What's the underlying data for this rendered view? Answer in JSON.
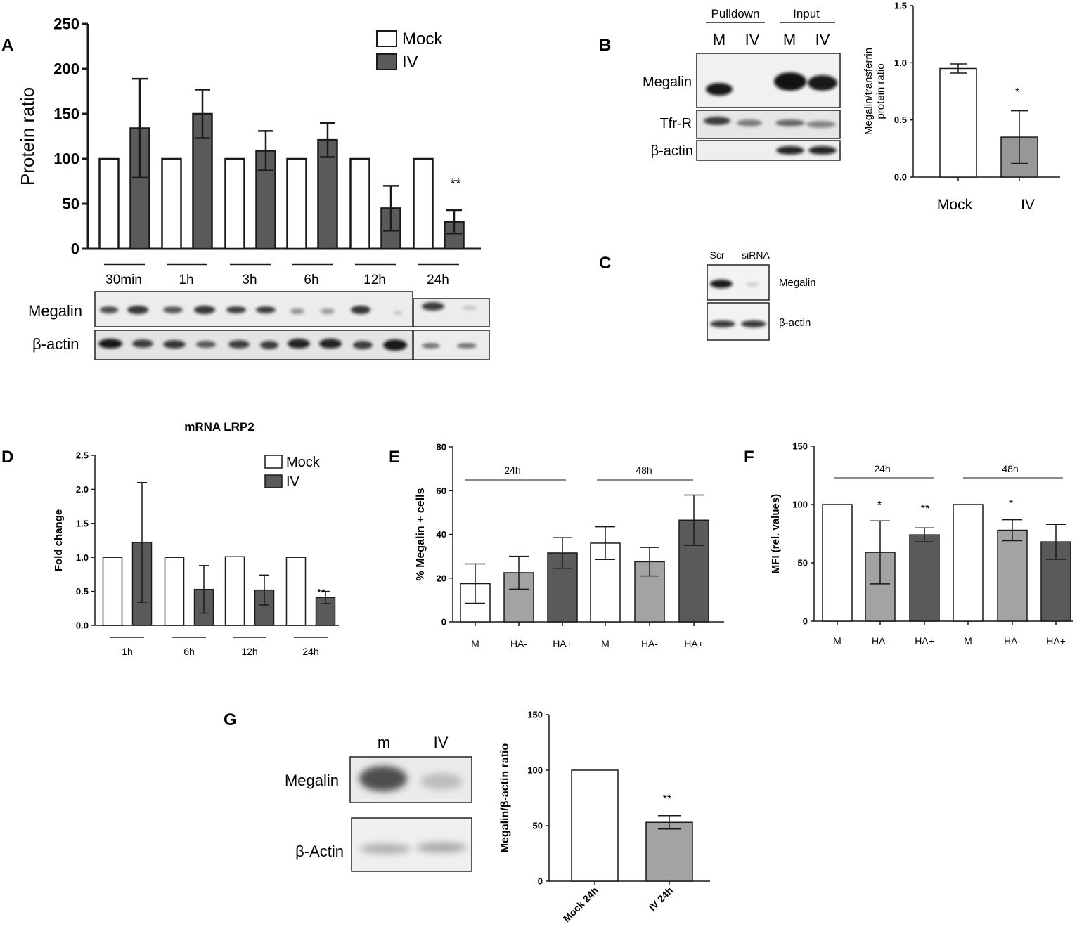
{
  "panels": {
    "A": {
      "letter": "A",
      "legend": {
        "mock": "Mock",
        "iv": "IV"
      },
      "blot_rows": [
        "Megalin",
        "β-actin"
      ],
      "significance": "**"
    },
    "B": {
      "letter": "B",
      "group_labels": [
        "Pulldown",
        "Input"
      ],
      "lane_labels": [
        "M",
        "IV",
        "M",
        "IV"
      ],
      "blot_rows": [
        "Megalin",
        "Tfr-R",
        "β-actin"
      ],
      "significance": "*"
    },
    "C": {
      "letter": "C",
      "lane_labels": [
        "Scr",
        "siRNA"
      ],
      "blot_rows": [
        "Megalin",
        "β-actin"
      ]
    },
    "D": {
      "letter": "D",
      "legend": {
        "mock": "Mock",
        "iv": "IV"
      },
      "significance": "**"
    },
    "E": {
      "letter": "E",
      "group_labels": [
        "24h",
        "48h"
      ]
    },
    "F": {
      "letter": "F",
      "group_labels": [
        "24h",
        "48h"
      ],
      "significance": [
        "*",
        "**",
        "*"
      ]
    },
    "G": {
      "letter": "G",
      "lane_labels": [
        "m",
        "IV"
      ],
      "blot_rows": [
        "Megalin",
        "β-Actin"
      ],
      "significance": "**"
    }
  },
  "colors": {
    "mock": "#ffffff",
    "iv_dark": "#5a5a5a",
    "ha_minus": "#a3a3a3",
    "ha_plus": "#5a5a5a",
    "axis": "#1a1a1a"
  },
  "chart_data": [
    {
      "id": "A",
      "type": "bar",
      "ylabel": "Protein ratio",
      "ylim": [
        0,
        250
      ],
      "yticks": [
        0,
        50,
        100,
        150,
        200,
        250
      ],
      "categories": [
        "30min",
        "1h",
        "3h",
        "6h",
        "12h",
        "24h"
      ],
      "series": [
        {
          "name": "Mock",
          "values": [
            100,
            100,
            100,
            100,
            100,
            100
          ],
          "errors": [
            0,
            0,
            0,
            0,
            0,
            0
          ]
        },
        {
          "name": "IV",
          "values": [
            134,
            150,
            109,
            121,
            45,
            30
          ],
          "errors": [
            55,
            27,
            22,
            19,
            25,
            13
          ]
        }
      ]
    },
    {
      "id": "B",
      "type": "bar",
      "ylabel": "Megalin/transferrin protein ratio",
      "ylim": [
        0,
        1.5
      ],
      "yticks": [
        0.0,
        0.5,
        1.0,
        1.5
      ],
      "categories": [
        "Mock",
        "IV"
      ],
      "values": [
        0.95,
        0.35
      ],
      "errors": [
        0.04,
        0.23
      ]
    },
    {
      "id": "D",
      "type": "bar",
      "title": "mRNA  LRP2",
      "ylabel": "Fold change",
      "ylim": [
        0,
        2.5
      ],
      "yticks": [
        0.0,
        0.5,
        1.0,
        1.5,
        2.0,
        2.5
      ],
      "categories": [
        "1h",
        "6h",
        "12h",
        "24h"
      ],
      "series": [
        {
          "name": "Mock",
          "values": [
            1.0,
            1.0,
            1.01,
            1.0
          ],
          "errors": [
            0,
            0,
            0,
            0
          ]
        },
        {
          "name": "IV",
          "values": [
            1.22,
            0.53,
            0.52,
            0.41
          ],
          "errors": [
            0.88,
            0.35,
            0.22,
            0.09
          ]
        }
      ]
    },
    {
      "id": "E",
      "type": "bar",
      "ylabel": "% Megalin + cells",
      "ylim": [
        0,
        80
      ],
      "yticks": [
        0,
        20,
        40,
        60,
        80
      ],
      "categories": [
        "M",
        "HA-",
        "HA+",
        "M",
        "HA-",
        "HA+"
      ],
      "values": [
        17.5,
        22.5,
        31.5,
        36,
        27.5,
        46.5
      ],
      "errors": [
        9,
        7.5,
        7,
        7.5,
        6.5,
        11.5
      ]
    },
    {
      "id": "F",
      "type": "bar",
      "ylabel": "MFI (rel. values)",
      "ylim": [
        0,
        150
      ],
      "yticks": [
        0,
        50,
        100,
        150
      ],
      "categories": [
        "M",
        "HA-",
        "HA+",
        "M",
        "HA-",
        "HA+"
      ],
      "values": [
        100,
        59,
        74,
        100,
        78,
        68
      ],
      "errors": [
        0,
        27,
        6,
        0,
        9,
        15
      ]
    },
    {
      "id": "G",
      "type": "bar",
      "ylabel": "Megalin/β-actin ratio",
      "ylim": [
        0,
        150
      ],
      "yticks": [
        0,
        50,
        100,
        150
      ],
      "categories": [
        "Mock 24h",
        "IV 24h"
      ],
      "values": [
        100,
        53
      ],
      "errors": [
        0,
        6
      ]
    }
  ]
}
